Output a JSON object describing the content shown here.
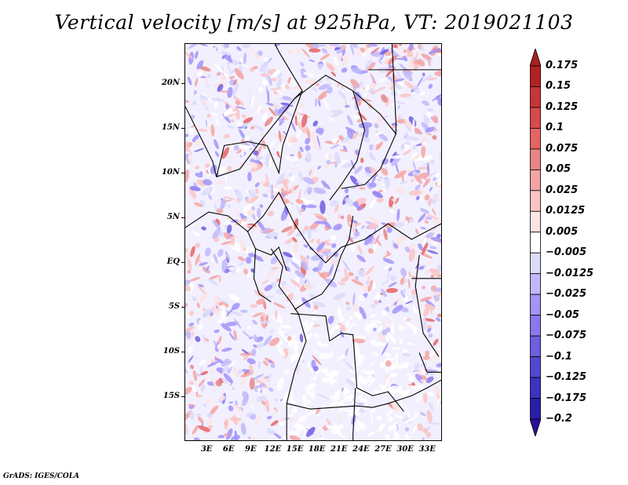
{
  "title": "Vertical velocity [m/s] at 925hPa, VT: 2019021103",
  "footer": "GrADS: IGES/COLA",
  "map": {
    "lat_labels": [
      "20N",
      "15N",
      "10N",
      "5N",
      "EQ",
      "5S",
      "10S",
      "15S"
    ],
    "lat_values": [
      20,
      15,
      10,
      5,
      0,
      -5,
      -10,
      -15
    ],
    "lon_labels": [
      "3E",
      "6E",
      "9E",
      "12E",
      "15E",
      "18E",
      "21E",
      "24E",
      "27E",
      "30E",
      "33E"
    ],
    "lon_values": [
      3,
      6,
      9,
      12,
      15,
      18,
      21,
      24,
      27,
      30,
      33
    ],
    "lat_range": [
      -20,
      24.5
    ],
    "lon_range": [
      0,
      35
    ]
  },
  "colorbar": {
    "labels": [
      "0.175",
      "0.15",
      "0.125",
      "0.1",
      "0.075",
      "0.05",
      "0.025",
      "0.0125",
      "0.005",
      "-0.005",
      "-0.0125",
      "-0.025",
      "-0.05",
      "-0.075",
      "-0.1",
      "-0.125",
      "-0.175",
      "-0.2"
    ],
    "colors": [
      "#b22222",
      "#c63636",
      "#d84a4a",
      "#e66464",
      "#e88686",
      "#f4a4a4",
      "#fac4c4",
      "#fde4e4",
      "#ffffff",
      "#dcdcfc",
      "#c0b8fa",
      "#a294f8",
      "#8a78f0",
      "#6e5ee0",
      "#5048d0",
      "#3e32c0",
      "#2a1eaa",
      "#2c1ca4"
    ],
    "top_arrow_color": "#a82020",
    "bottom_arrow_color": "#2a0e9a"
  }
}
